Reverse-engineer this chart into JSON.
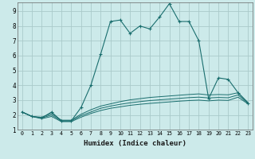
{
  "xlabel": "Humidex (Indice chaleur)",
  "bg_color": "#cceaea",
  "grid_color": "#aacaca",
  "line_color": "#1a6e6e",
  "xlim": [
    -0.5,
    23.5
  ],
  "ylim": [
    1,
    9.6
  ],
  "yticks": [
    1,
    2,
    3,
    4,
    5,
    6,
    7,
    8,
    9
  ],
  "xticks": [
    0,
    1,
    2,
    3,
    4,
    5,
    6,
    7,
    8,
    9,
    10,
    11,
    12,
    13,
    14,
    15,
    16,
    17,
    18,
    19,
    20,
    21,
    22,
    23
  ],
  "series_main": {
    "x": [
      0,
      1,
      2,
      3,
      4,
      5,
      6,
      7,
      8,
      9,
      10,
      11,
      12,
      13,
      14,
      15,
      16,
      17,
      18,
      19,
      20,
      21,
      22,
      23
    ],
    "y": [
      2.2,
      1.9,
      1.8,
      2.2,
      1.6,
      1.6,
      2.5,
      4.0,
      6.1,
      8.3,
      8.4,
      7.5,
      8.0,
      7.8,
      8.6,
      9.5,
      8.3,
      8.3,
      7.0,
      3.1,
      4.5,
      4.4,
      3.5,
      2.8
    ]
  },
  "series_flat": [
    {
      "x": [
        0,
        1,
        2,
        3,
        4,
        5,
        6,
        7,
        8,
        9,
        10,
        11,
        12,
        13,
        14,
        15,
        16,
        17,
        18,
        19,
        20,
        21,
        22,
        23
      ],
      "y": [
        2.2,
        1.9,
        1.75,
        1.9,
        1.55,
        1.55,
        1.85,
        2.1,
        2.3,
        2.45,
        2.55,
        2.65,
        2.72,
        2.78,
        2.83,
        2.88,
        2.93,
        2.97,
        3.0,
        2.95,
        3.0,
        2.98,
        3.2,
        2.75
      ]
    },
    {
      "x": [
        0,
        1,
        2,
        3,
        4,
        5,
        6,
        7,
        8,
        9,
        10,
        11,
        12,
        13,
        14,
        15,
        16,
        17,
        18,
        19,
        20,
        21,
        22,
        23
      ],
      "y": [
        2.2,
        1.9,
        1.8,
        2.0,
        1.6,
        1.6,
        1.95,
        2.2,
        2.45,
        2.6,
        2.72,
        2.82,
        2.9,
        2.97,
        3.02,
        3.07,
        3.12,
        3.17,
        3.2,
        3.15,
        3.18,
        3.16,
        3.35,
        2.8
      ]
    },
    {
      "x": [
        0,
        1,
        2,
        3,
        4,
        5,
        6,
        7,
        8,
        9,
        10,
        11,
        12,
        13,
        14,
        15,
        16,
        17,
        18,
        19,
        20,
        21,
        22,
        23
      ],
      "y": [
        2.2,
        1.9,
        1.85,
        2.1,
        1.65,
        1.65,
        2.05,
        2.35,
        2.6,
        2.75,
        2.9,
        3.02,
        3.1,
        3.18,
        3.23,
        3.28,
        3.33,
        3.38,
        3.42,
        3.35,
        3.38,
        3.36,
        3.5,
        2.85
      ]
    }
  ]
}
